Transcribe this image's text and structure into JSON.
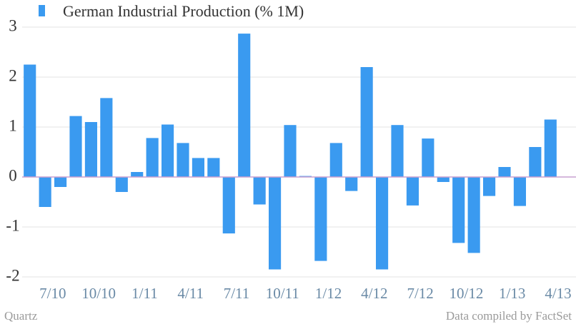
{
  "chart_data": {
    "type": "bar",
    "title": "German Industrial Production (% 1M)",
    "source": "Data compiled by FactSet",
    "credit": "Quartz",
    "categories": [
      null,
      "7/10",
      null,
      null,
      "10/10",
      null,
      null,
      "1/11",
      null,
      null,
      "4/11",
      null,
      null,
      "7/11",
      null,
      null,
      "10/11",
      null,
      null,
      "1/12",
      null,
      null,
      "4/12",
      null,
      null,
      "7/12",
      null,
      null,
      "10/12",
      null,
      null,
      "1/13",
      null,
      null,
      "4/13"
    ],
    "values": [
      2.25,
      -0.6,
      -0.2,
      1.22,
      1.1,
      1.58,
      -0.3,
      0.1,
      0.78,
      1.05,
      0.68,
      0.38,
      0.38,
      -1.13,
      2.87,
      -0.55,
      -1.85,
      1.04,
      0.02,
      -1.68,
      0.68,
      -0.28,
      2.2,
      -1.85,
      1.04,
      -0.57,
      0.77,
      -0.1,
      -1.32,
      -1.52,
      -0.38,
      0.2,
      -0.58,
      0.6,
      1.15
    ],
    "color": "#3a9af0",
    "baseline_color": "#c9a0d0",
    "ylim": [
      -2.15,
      3.15
    ],
    "yticks": [
      -2,
      -1,
      0,
      1,
      2,
      3
    ],
    "grid": true
  }
}
